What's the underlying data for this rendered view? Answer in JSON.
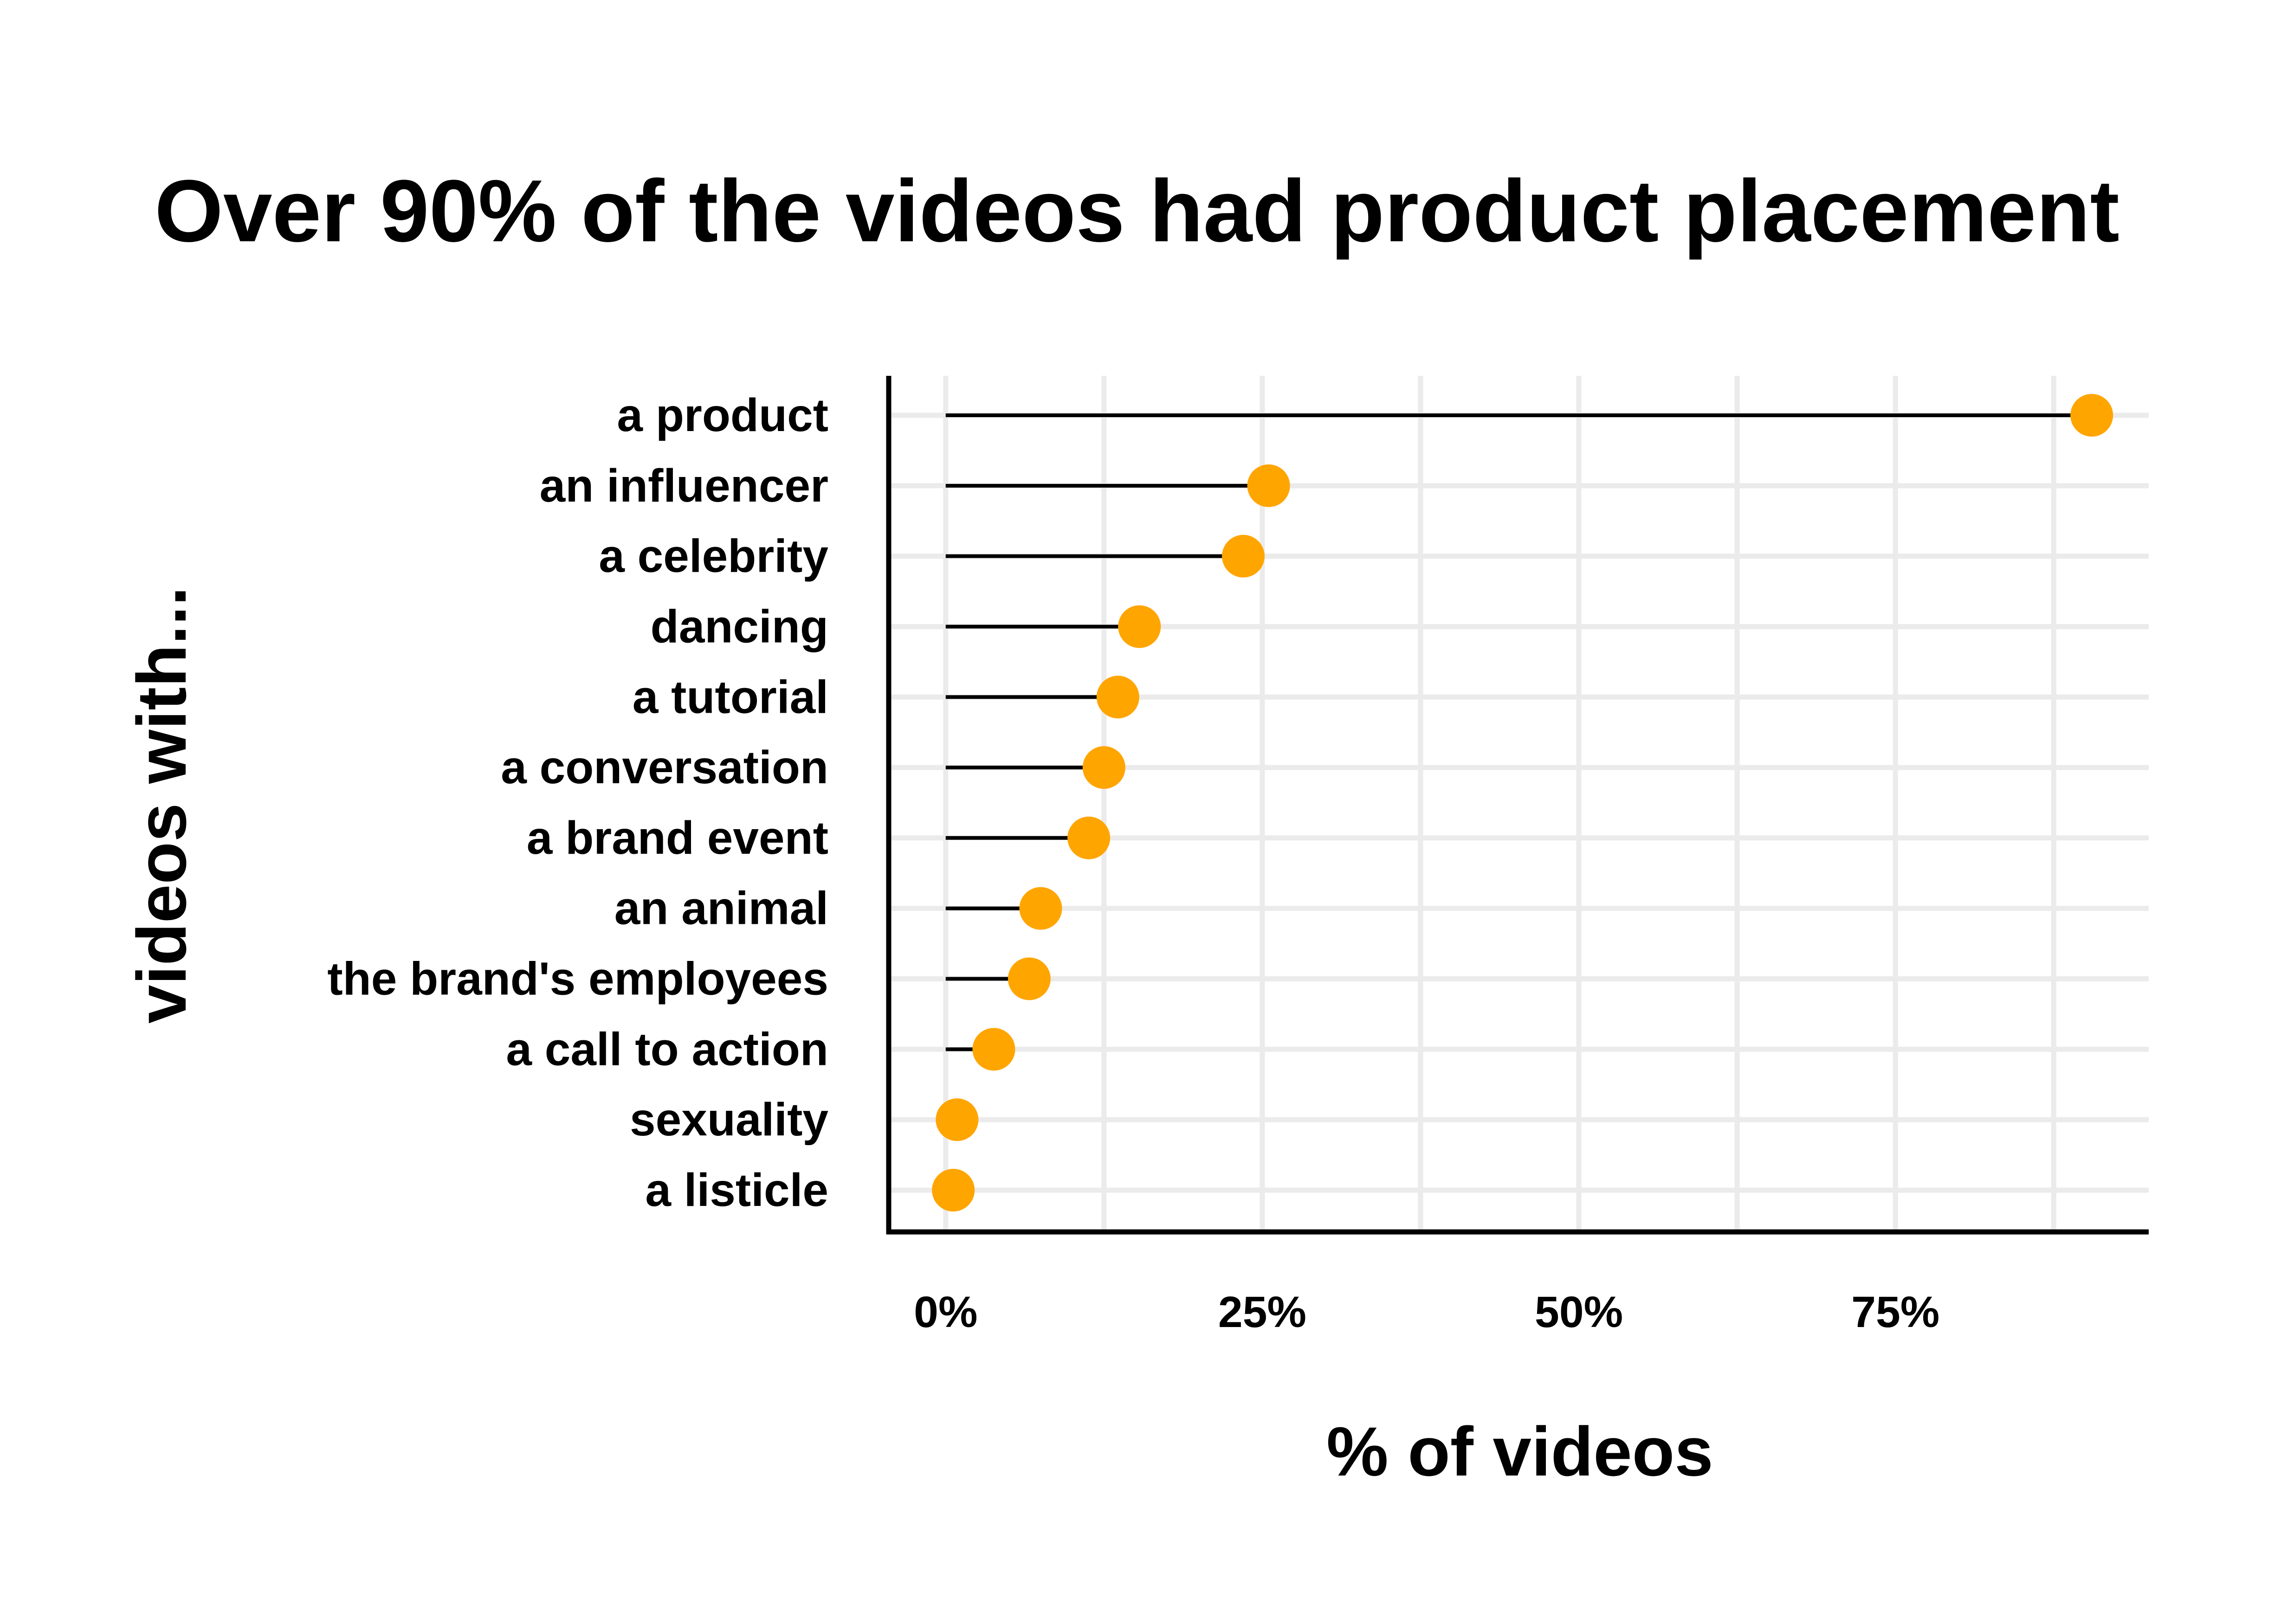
{
  "chart_data": {
    "type": "lollipop",
    "title": "Over 90% of the videos had product placement",
    "xlabel": "% of videos",
    "ylabel": "videos with...",
    "xlim": [
      -4.5,
      95
    ],
    "xticks": [
      0,
      25,
      50,
      75
    ],
    "xtick_labels": [
      "0%",
      "25%",
      "50%",
      "75%"
    ],
    "grid": true,
    "point_color": "#FFA500",
    "stem_color": "#000000",
    "categories": [
      "a product",
      "an influencer",
      "a celebrity",
      "dancing",
      "a tutorial",
      "a conversation",
      "a brand event",
      "an animal",
      "the brand's employees",
      "a call to action",
      "sexuality",
      "a listicle"
    ],
    "values": [
      90.5,
      25.5,
      23.5,
      15.3,
      13.6,
      12.5,
      11.3,
      7.5,
      6.6,
      3.8,
      0.9,
      0.6
    ]
  }
}
